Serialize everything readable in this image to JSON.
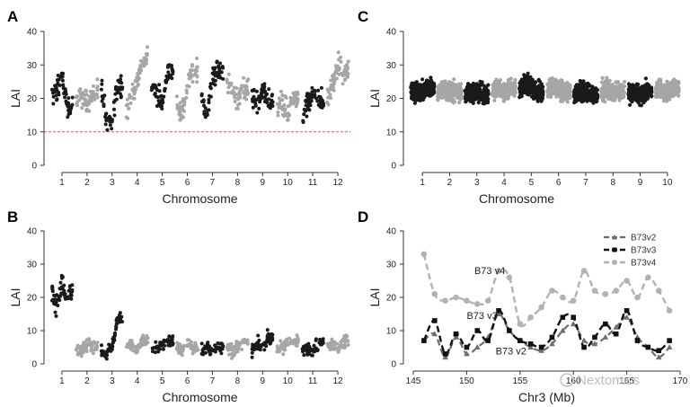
{
  "colors": {
    "dark": "#1a1a1a",
    "light": "#a6a6a6",
    "threshold": "#d9534f"
  },
  "watermark": "Nextomics",
  "chart_data": [
    {
      "id": "A",
      "type": "scatter",
      "letter": "A",
      "xlabel": "Chromosome",
      "ylabel": "LAI",
      "ylim": [
        0,
        40
      ],
      "yticks": [
        "0",
        "10",
        "20",
        "30",
        "40"
      ],
      "categories": [
        "1",
        "2",
        "3",
        "4",
        "5",
        "6",
        "7",
        "8",
        "9",
        "10",
        "11",
        "12"
      ],
      "threshold": 10,
      "chromosome_profiles": [
        {
          "chr": "1",
          "color": "dark",
          "centers": [
            20,
            22,
            26,
            18
          ]
        },
        {
          "chr": "2",
          "color": "light",
          "centers": [
            19,
            21,
            18,
            22
          ]
        },
        {
          "chr": "3",
          "color": "dark",
          "centers": [
            24,
            13,
            14,
            24
          ]
        },
        {
          "chr": "4",
          "color": "light",
          "centers": [
            17,
            20,
            25,
            32
          ]
        },
        {
          "chr": "5",
          "color": "dark",
          "centers": [
            26,
            21,
            18,
            28
          ]
        },
        {
          "chr": "6",
          "color": "light",
          "centers": [
            18,
            15,
            24,
            29
          ]
        },
        {
          "chr": "7",
          "color": "dark",
          "centers": [
            20,
            15,
            27,
            28
          ]
        },
        {
          "chr": "8",
          "color": "light",
          "centers": [
            25,
            22,
            19,
            23
          ]
        },
        {
          "chr": "9",
          "color": "dark",
          "centers": [
            20,
            18,
            22,
            19
          ]
        },
        {
          "chr": "10",
          "color": "light",
          "centers": [
            17,
            19,
            15,
            20
          ]
        },
        {
          "chr": "11",
          "color": "dark",
          "centers": [
            14,
            18,
            22,
            20
          ]
        },
        {
          "chr": "12",
          "color": "light",
          "centers": [
            18,
            24,
            30,
            28
          ]
        }
      ]
    },
    {
      "id": "B",
      "type": "scatter",
      "letter": "B",
      "xlabel": "Chromosome",
      "ylabel": "LAI",
      "ylim": [
        0,
        40
      ],
      "yticks": [
        "0",
        "10",
        "20",
        "30",
        "40"
      ],
      "categories": [
        "1",
        "2",
        "3",
        "4",
        "5",
        "6",
        "7",
        "8",
        "9",
        "10",
        "11",
        "12"
      ],
      "chromosome_profiles": [
        {
          "chr": "1",
          "color": "dark",
          "centers": [
            22,
            17,
            24,
            22
          ]
        },
        {
          "chr": "2",
          "color": "light",
          "centers": [
            5,
            4,
            6,
            5
          ]
        },
        {
          "chr": "3",
          "color": "dark",
          "centers": [
            4,
            3,
            5,
            14
          ]
        },
        {
          "chr": "4",
          "color": "light",
          "centers": [
            5,
            6,
            4,
            7
          ]
        },
        {
          "chr": "5",
          "color": "dark",
          "centers": [
            4,
            5,
            6,
            7
          ]
        },
        {
          "chr": "6",
          "color": "light",
          "centers": [
            5,
            4,
            6,
            5
          ]
        },
        {
          "chr": "7",
          "color": "dark",
          "centers": [
            4,
            5,
            4,
            5
          ]
        },
        {
          "chr": "8",
          "color": "light",
          "centers": [
            5,
            4,
            5,
            6
          ]
        },
        {
          "chr": "9",
          "color": "dark",
          "centers": [
            4,
            6,
            5,
            8
          ]
        },
        {
          "chr": "10",
          "color": "light",
          "centers": [
            4,
            5,
            6,
            7
          ]
        },
        {
          "chr": "11",
          "color": "dark",
          "centers": [
            4,
            5,
            4,
            6
          ]
        },
        {
          "chr": "12",
          "color": "light",
          "centers": [
            5,
            6,
            5,
            7
          ]
        }
      ]
    },
    {
      "id": "C",
      "type": "scatter",
      "letter": "C",
      "xlabel": "Chromosome",
      "ylabel": "LAI",
      "ylim": [
        0,
        40
      ],
      "yticks": [
        "0",
        "10",
        "20",
        "30",
        "40"
      ],
      "categories": [
        "1",
        "2",
        "3",
        "4",
        "5",
        "6",
        "7",
        "8",
        "9",
        "10"
      ],
      "chromosome_profiles": [
        {
          "chr": "1",
          "color": "dark",
          "centers": [
            22,
            22,
            22,
            23
          ]
        },
        {
          "chr": "2",
          "color": "light",
          "centers": [
            22,
            23,
            22,
            22
          ]
        },
        {
          "chr": "3",
          "color": "dark",
          "centers": [
            21,
            22,
            22,
            21
          ]
        },
        {
          "chr": "4",
          "color": "light",
          "centers": [
            22,
            23,
            22,
            23
          ]
        },
        {
          "chr": "5",
          "color": "dark",
          "centers": [
            23,
            24,
            23,
            22
          ]
        },
        {
          "chr": "6",
          "color": "light",
          "centers": [
            22,
            24,
            23,
            22
          ]
        },
        {
          "chr": "7",
          "color": "dark",
          "centers": [
            21,
            22,
            22,
            21
          ]
        },
        {
          "chr": "8",
          "color": "light",
          "centers": [
            22,
            23,
            22,
            22
          ]
        },
        {
          "chr": "9",
          "color": "dark",
          "centers": [
            21,
            22,
            21,
            22
          ]
        },
        {
          "chr": "10",
          "color": "light",
          "centers": [
            22,
            23,
            22,
            23
          ]
        }
      ]
    },
    {
      "id": "D",
      "type": "line",
      "letter": "D",
      "xlabel": "Chr3 (Mb)",
      "ylabel": "LAI",
      "xlim": [
        145,
        170
      ],
      "ylim": [
        0,
        40
      ],
      "xticks": [
        "145",
        "150",
        "155",
        "160",
        "165",
        "170"
      ],
      "yticks": [
        "0",
        "10",
        "20",
        "30",
        "40"
      ],
      "legend_position": "top-right",
      "series": [
        {
          "name": "B73v2",
          "style": "v2",
          "x": [
            146,
            147,
            148,
            149,
            150,
            151,
            152,
            153,
            154,
            155,
            156,
            157,
            158,
            159,
            160,
            161,
            162,
            163,
            164,
            165,
            166,
            167,
            168,
            169
          ],
          "y": [
            7,
            9,
            2,
            8,
            3,
            5,
            8,
            15,
            10,
            7,
            5,
            4,
            6,
            10,
            12,
            7,
            6,
            8,
            11,
            14,
            8,
            5,
            2,
            5
          ]
        },
        {
          "name": "B73v3",
          "style": "v3",
          "x": [
            146,
            147,
            148,
            149,
            150,
            151,
            152,
            153,
            154,
            155,
            156,
            157,
            158,
            159,
            160,
            161,
            162,
            163,
            164,
            165,
            166,
            167,
            168,
            169
          ],
          "y": [
            7,
            13,
            3,
            9,
            5,
            10,
            7,
            16,
            10,
            7,
            6,
            5,
            8,
            14,
            14,
            5,
            8,
            12,
            9,
            16,
            7,
            5,
            4,
            7
          ]
        },
        {
          "name": "B73v4",
          "style": "v4",
          "x": [
            146,
            147,
            148,
            149,
            150,
            151,
            152,
            153,
            154,
            155,
            156,
            157,
            158,
            159,
            160,
            161,
            162,
            163,
            164,
            165,
            166,
            167,
            168,
            169
          ],
          "y": [
            33,
            21,
            19,
            20,
            19,
            18,
            19,
            28,
            26,
            12,
            14,
            17,
            22,
            20,
            19,
            28,
            22,
            21,
            22,
            25,
            20,
            26,
            22,
            16
          ]
        }
      ],
      "annotations": [
        {
          "text": "B73 v4",
          "x": 152.5,
          "y": 26
        },
        {
          "text": "B73 v3",
          "x": 153.3,
          "y": 13
        },
        {
          "text": "B73 v2",
          "x": 155,
          "y": 5
        }
      ]
    }
  ]
}
